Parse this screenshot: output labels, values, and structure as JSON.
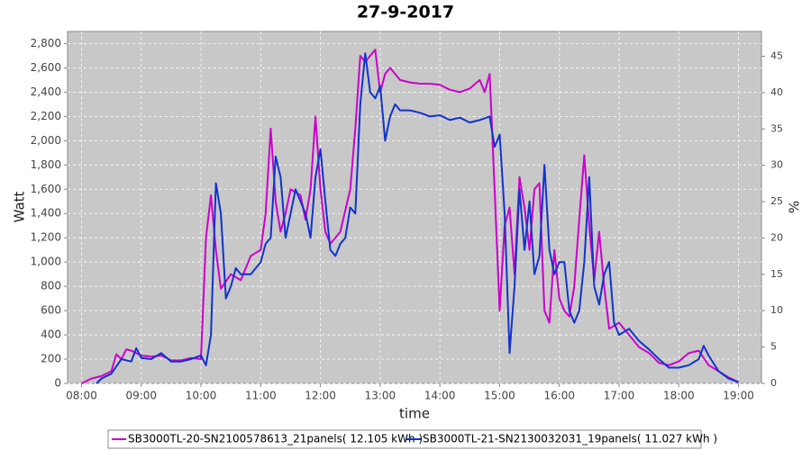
{
  "chart_data": {
    "type": "line",
    "title": "27-9-2017",
    "x_label": "time",
    "y_label": "Watt",
    "y2_label": "%",
    "xlim": [
      466,
      1163
    ],
    "xticks": [
      {
        "value": 480,
        "label": "08:00"
      },
      {
        "value": 540,
        "label": "09:00"
      },
      {
        "value": 600,
        "label": "10:00"
      },
      {
        "value": 660,
        "label": "11:00"
      },
      {
        "value": 720,
        "label": "12:00"
      },
      {
        "value": 780,
        "label": "13:00"
      },
      {
        "value": 840,
        "label": "14:00"
      },
      {
        "value": 900,
        "label": "15:00"
      },
      {
        "value": 960,
        "label": "16:00"
      },
      {
        "value": 1020,
        "label": "17:00"
      },
      {
        "value": 1080,
        "label": "18:00"
      },
      {
        "value": 1140,
        "label": "19:00"
      }
    ],
    "ylim": [
      0,
      2900
    ],
    "yticks": [
      0,
      200,
      400,
      600,
      800,
      {
        "value": 1000,
        "label": "1,000"
      },
      {
        "value": 1200,
        "label": "1,200"
      },
      {
        "value": 1400,
        "label": "1,400"
      },
      {
        "value": 1600,
        "label": "1,600"
      },
      {
        "value": 1800,
        "label": "1,800"
      },
      {
        "value": 2000,
        "label": "2,000"
      },
      {
        "value": 2200,
        "label": "2,200"
      },
      {
        "value": 2400,
        "label": "2,400"
      },
      {
        "value": 2600,
        "label": "2,600"
      },
      {
        "value": 2800,
        "label": "2,800"
      }
    ],
    "y2lim": [
      0,
      48.4
    ],
    "y2ticks": [
      0,
      5,
      10,
      15,
      20,
      25,
      30,
      35,
      40,
      45
    ],
    "grid": true,
    "legend": "bottom",
    "series": [
      {
        "name": "SB3000TL-20-SN2100578613_21panels( 12.105 kWh )",
        "color": "#cc00cc",
        "x": [
          480,
          490,
          500,
          510,
          515,
          520,
          525,
          530,
          540,
          550,
          560,
          570,
          580,
          590,
          600,
          605,
          610,
          615,
          620,
          630,
          640,
          650,
          660,
          665,
          670,
          675,
          680,
          685,
          690,
          700,
          705,
          710,
          715,
          720,
          725,
          730,
          740,
          750,
          755,
          760,
          765,
          770,
          775,
          780,
          785,
          790,
          800,
          810,
          820,
          830,
          840,
          850,
          860,
          870,
          880,
          885,
          890,
          895,
          900,
          905,
          910,
          915,
          920,
          925,
          930,
          935,
          940,
          945,
          950,
          955,
          960,
          965,
          970,
          975,
          980,
          985,
          990,
          995,
          1000,
          1005,
          1010,
          1020,
          1030,
          1040,
          1050,
          1060,
          1070,
          1080,
          1090,
          1100,
          1110,
          1120,
          1130,
          1140
        ],
        "values": [
          0,
          40,
          60,
          100,
          240,
          200,
          280,
          270,
          230,
          220,
          230,
          190,
          190,
          210,
          200,
          1200,
          1550,
          1100,
          780,
          900,
          850,
          1050,
          1100,
          1400,
          2100,
          1500,
          1250,
          1400,
          1600,
          1550,
          1350,
          1600,
          2200,
          1600,
          1250,
          1150,
          1250,
          1600,
          2100,
          2700,
          2650,
          2700,
          2750,
          2400,
          2550,
          2600,
          2500,
          2480,
          2470,
          2470,
          2460,
          2420,
          2400,
          2430,
          2500,
          2400,
          2550,
          1600,
          600,
          1300,
          1450,
          900,
          1700,
          1450,
          1100,
          1600,
          1650,
          600,
          500,
          1100,
          700,
          600,
          550,
          800,
          1350,
          1880,
          1300,
          850,
          1250,
          800,
          450,
          500,
          400,
          300,
          250,
          170,
          150,
          180,
          250,
          270,
          150,
          100,
          50,
          10
        ]
      },
      {
        "name": "SB3000TL-21-SN2130032031_19panels( 11.027 kWh )",
        "color": "#1133cc",
        "x": [
          495,
          500,
          510,
          520,
          530,
          535,
          540,
          550,
          560,
          570,
          580,
          590,
          600,
          605,
          610,
          615,
          620,
          625,
          630,
          635,
          640,
          650,
          660,
          665,
          670,
          675,
          680,
          685,
          690,
          695,
          700,
          705,
          710,
          715,
          720,
          725,
          730,
          735,
          740,
          745,
          750,
          755,
          760,
          765,
          770,
          775,
          780,
          785,
          790,
          795,
          800,
          810,
          820,
          830,
          840,
          850,
          860,
          870,
          880,
          890,
          895,
          900,
          905,
          910,
          915,
          920,
          925,
          930,
          935,
          940,
          945,
          950,
          955,
          960,
          965,
          970,
          975,
          980,
          985,
          990,
          995,
          1000,
          1005,
          1010,
          1015,
          1020,
          1030,
          1040,
          1050,
          1060,
          1070,
          1080,
          1090,
          1100,
          1105,
          1110,
          1120,
          1130,
          1140
        ],
        "values": [
          0,
          40,
          80,
          200,
          180,
          290,
          210,
          200,
          250,
          180,
          180,
          200,
          230,
          150,
          400,
          1650,
          1400,
          700,
          800,
          950,
          900,
          900,
          1000,
          1150,
          1200,
          1870,
          1700,
          1200,
          1400,
          1600,
          1500,
          1400,
          1200,
          1700,
          1930,
          1500,
          1100,
          1050,
          1150,
          1200,
          1450,
          1400,
          2300,
          2720,
          2400,
          2350,
          2450,
          2000,
          2200,
          2300,
          2250,
          2250,
          2230,
          2200,
          2210,
          2170,
          2190,
          2150,
          2170,
          2200,
          1950,
          2050,
          1400,
          250,
          800,
          1600,
          1100,
          1500,
          900,
          1050,
          1800,
          1100,
          900,
          1000,
          1000,
          600,
          500,
          600,
          1000,
          1700,
          800,
          650,
          900,
          1000,
          500,
          400,
          450,
          350,
          280,
          200,
          130,
          130,
          150,
          200,
          310,
          230,
          100,
          40,
          10
        ]
      }
    ]
  }
}
